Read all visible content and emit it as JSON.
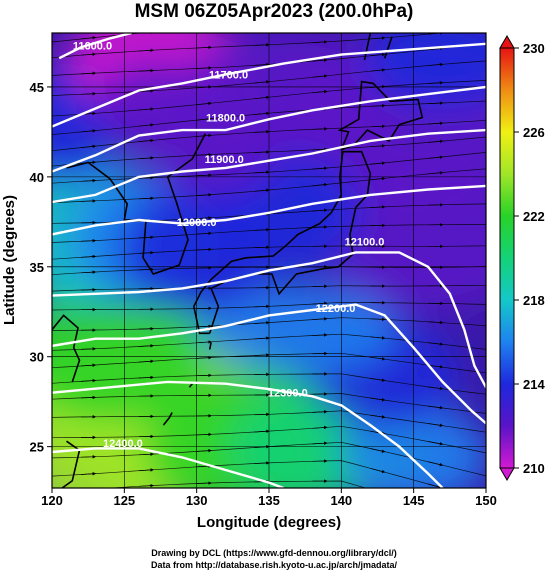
{
  "title": "MSM 06Z05Apr2023 (200.0hPa)",
  "xaxis": {
    "label": "Longitude (degrees)",
    "range": [
      120,
      150
    ],
    "ticks": [
      120,
      125,
      130,
      135,
      140,
      145,
      150
    ],
    "tick_labels": [
      "120",
      "125",
      "130",
      "135",
      "140",
      "145",
      "150"
    ]
  },
  "yaxis": {
    "label": "Latitude  (degrees)",
    "range": [
      22.7,
      48
    ],
    "ticks": [
      25,
      30,
      35,
      40,
      45
    ],
    "tick_labels": [
      "25",
      "30",
      "35",
      "40",
      "45"
    ]
  },
  "colorbar": {
    "range": [
      210,
      230
    ],
    "ticks": [
      210,
      214,
      218,
      222,
      226,
      230
    ],
    "tick_labels": [
      "210",
      "214",
      "218",
      "222",
      "226",
      "230"
    ],
    "stops": [
      {
        "value": 210,
        "color": "#d21ad2"
      },
      {
        "value": 212,
        "color": "#5a14c8"
      },
      {
        "value": 214,
        "color": "#1e28dc"
      },
      {
        "value": 216,
        "color": "#1e82f0"
      },
      {
        "value": 218,
        "color": "#14c8c8"
      },
      {
        "value": 220,
        "color": "#14d278"
      },
      {
        "value": 222,
        "color": "#28d228"
      },
      {
        "value": 224,
        "color": "#a0e628"
      },
      {
        "value": 226,
        "color": "#f0f014"
      },
      {
        "value": 228,
        "color": "#f08c14"
      },
      {
        "value": 230,
        "color": "#e61414"
      }
    ]
  },
  "contours": [
    {
      "value": 11600,
      "label": "11600.0",
      "points": [
        [
          120.5,
          46.6
        ],
        [
          122,
          47.2
        ],
        [
          124,
          47.7
        ],
        [
          125.5,
          48
        ]
      ],
      "label_at": [
        122.8,
        47.3
      ]
    },
    {
      "value": 11700,
      "label": "11700.0",
      "points": [
        [
          120,
          42.8
        ],
        [
          123,
          43.8
        ],
        [
          126,
          44.8
        ],
        [
          129,
          45.2
        ],
        [
          132,
          45.7
        ],
        [
          136,
          46.3
        ],
        [
          140,
          46.8
        ],
        [
          145,
          47.1
        ],
        [
          150,
          47.4
        ]
      ],
      "label_at": [
        132.2,
        45.7
      ]
    },
    {
      "value": 11800,
      "label": "11800.0",
      "points": [
        [
          120,
          40.3
        ],
        [
          123,
          41.2
        ],
        [
          126,
          42.3
        ],
        [
          129,
          42.6
        ],
        [
          132,
          42.6
        ],
        [
          135,
          43.2
        ],
        [
          138,
          43.7
        ],
        [
          142,
          44.2
        ],
        [
          146,
          44.6
        ],
        [
          150,
          45.0
        ]
      ],
      "label_at": [
        132.0,
        43.3
      ]
    },
    {
      "value": 11900,
      "label": "11900.0",
      "points": [
        [
          120,
          38.6
        ],
        [
          123,
          39.0
        ],
        [
          126,
          40.0
        ],
        [
          129,
          40.3
        ],
        [
          132,
          40.5
        ],
        [
          135,
          40.9
        ],
        [
          138,
          41.3
        ],
        [
          142,
          42.0
        ],
        [
          146,
          42.4
        ],
        [
          150,
          42.6
        ]
      ],
      "label_at": [
        131.9,
        41.0
      ]
    },
    {
      "value": 12000,
      "label": "12000.0",
      "points": [
        [
          120,
          36.8
        ],
        [
          123,
          37.3
        ],
        [
          126,
          37.6
        ],
        [
          129,
          37.4
        ],
        [
          132,
          37.6
        ],
        [
          135,
          38.0
        ],
        [
          138,
          38.5
        ],
        [
          142,
          39.0
        ],
        [
          146,
          39.3
        ],
        [
          150,
          39.5
        ]
      ],
      "label_at": [
        130.0,
        37.5
      ]
    },
    {
      "value": 12100,
      "label": "12100.0",
      "points": [
        [
          120,
          33.4
        ],
        [
          123,
          33.5
        ],
        [
          126,
          33.6
        ],
        [
          129,
          33.8
        ],
        [
          132,
          34.2
        ],
        [
          135,
          34.8
        ],
        [
          138,
          35.2
        ],
        [
          141,
          35.8
        ],
        [
          144,
          35.8
        ],
        [
          146,
          35.0
        ],
        [
          147.5,
          33.5
        ],
        [
          148.5,
          31.5
        ],
        [
          149.2,
          29.5
        ],
        [
          150,
          28.3
        ]
      ],
      "label_at": [
        141.6,
        36.4
      ]
    },
    {
      "value": 12200,
      "label": "12200.0",
      "points": [
        [
          120,
          30.6
        ],
        [
          123,
          31.0
        ],
        [
          126,
          31.0
        ],
        [
          129,
          31.3
        ],
        [
          132,
          31.7
        ],
        [
          135,
          32.3
        ],
        [
          138,
          32.6
        ],
        [
          141,
          32.9
        ],
        [
          143,
          32.3
        ],
        [
          145,
          30.5
        ],
        [
          147,
          28.6
        ],
        [
          149,
          27.0
        ],
        [
          150,
          26.3
        ]
      ],
      "label_at": [
        139.6,
        32.7
      ]
    },
    {
      "value": 12300,
      "label": "12300.0",
      "points": [
        [
          120,
          28.0
        ],
        [
          124,
          28.3
        ],
        [
          128,
          28.6
        ],
        [
          132,
          28.5
        ],
        [
          135,
          28.2
        ],
        [
          138,
          27.8
        ],
        [
          140,
          27.3
        ],
        [
          142,
          26.2
        ],
        [
          144,
          25.0
        ],
        [
          146,
          23.5
        ],
        [
          147,
          22.7
        ]
      ],
      "label_at": [
        136.3,
        28.0
      ]
    },
    {
      "value": 12400,
      "label": "12400.0",
      "points": [
        [
          120,
          24.7
        ],
        [
          123,
          24.9
        ],
        [
          126,
          24.9
        ],
        [
          129,
          24.4
        ],
        [
          132,
          23.7
        ],
        [
          135,
          23.0
        ],
        [
          136,
          22.7
        ]
      ],
      "label_at": [
        124.9,
        25.2
      ]
    }
  ],
  "credits": {
    "line1": "Drawing by DCL (https://www.gfd-dennou.org/library/dcl/)",
    "line2": "Data from http://database.rish.kyoto-u.ac.jp/arch/jmadata/"
  }
}
